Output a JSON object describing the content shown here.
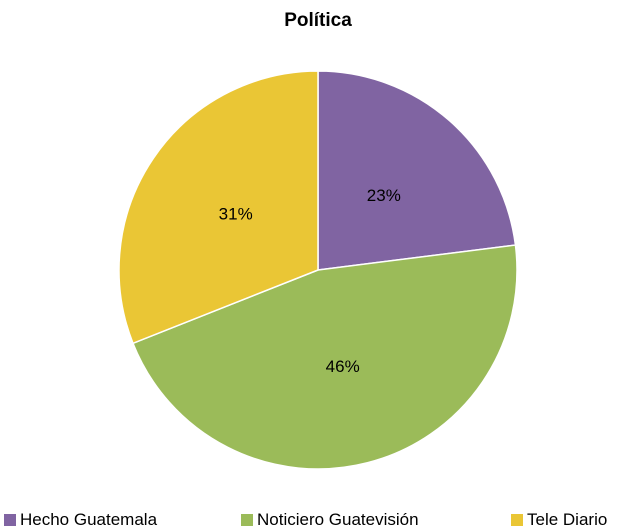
{
  "chart_data": {
    "type": "pie",
    "title": "Política",
    "categories": [
      "Hecho Guatemala",
      "Noticiero Guatevisión",
      "Tele Diario"
    ],
    "values": [
      23,
      46,
      31
    ],
    "labels": [
      "23%",
      "46%",
      "31%"
    ],
    "colors": [
      "#8064A2",
      "#9BBB59",
      "#EAC635"
    ],
    "legend_position": "bottom",
    "start_angle": "12 o'clock",
    "direction": "clockwise"
  }
}
